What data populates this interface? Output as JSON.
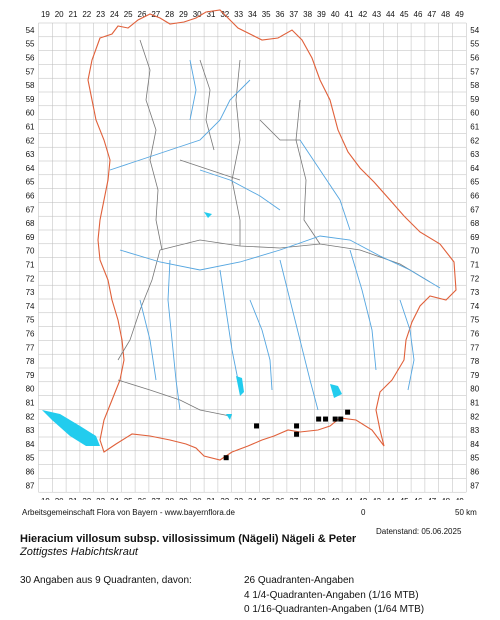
{
  "grid": {
    "x_labels": [
      "19",
      "20",
      "21",
      "22",
      "23",
      "24",
      "25",
      "26",
      "27",
      "28",
      "29",
      "30",
      "31",
      "32",
      "33",
      "34",
      "35",
      "36",
      "37",
      "38",
      "39",
      "40",
      "41",
      "42",
      "43",
      "44",
      "45",
      "46",
      "47",
      "48",
      "49"
    ],
    "y_labels": [
      "54",
      "55",
      "56",
      "57",
      "58",
      "59",
      "60",
      "61",
      "62",
      "63",
      "64",
      "65",
      "66",
      "67",
      "68",
      "69",
      "70",
      "71",
      "72",
      "73",
      "74",
      "75",
      "76",
      "77",
      "78",
      "79",
      "80",
      "81",
      "82",
      "83",
      "84",
      "85",
      "86",
      "87"
    ]
  },
  "occurrences": [
    {
      "x": 32.1,
      "y": 85.0
    },
    {
      "x": 34.3,
      "y": 82.7
    },
    {
      "x": 37.2,
      "y": 82.7
    },
    {
      "x": 37.2,
      "y": 83.3
    },
    {
      "x": 38.8,
      "y": 82.2
    },
    {
      "x": 39.3,
      "y": 82.2
    },
    {
      "x": 40.0,
      "y": 82.2
    },
    {
      "x": 40.4,
      "y": 82.2
    },
    {
      "x": 40.9,
      "y": 81.7
    }
  ],
  "colors": {
    "grid": "#bbbbbb",
    "state_border": "#e0603a",
    "district_border": "#777777",
    "rivers": "#55a6e0",
    "lakes": "#22ccee",
    "marker": "#000000"
  },
  "scale_bar": {
    "zero": "0",
    "end": "50 km"
  },
  "credit": "Arbeitsgemeinschaft Flora von Bayern - www.bayernflora.de",
  "date_stamp": "Datenstand: 05.06.2025",
  "species": {
    "scientific": "Hieracium villosum subsp. villosissimum (Nägeli) Nägeli & Peter",
    "common": "Zottigstes Habichtskraut"
  },
  "stats": {
    "summary": "30 Angaben aus 9 Quadranten, davon:",
    "quadrant": "26 Quadranten-Angaben",
    "mtb16": "4 1/4-Quadranten-Angaben (1/16 MTB)",
    "mtb64": "0 1/16-Quadranten-Angaben (1/64 MTB)"
  }
}
